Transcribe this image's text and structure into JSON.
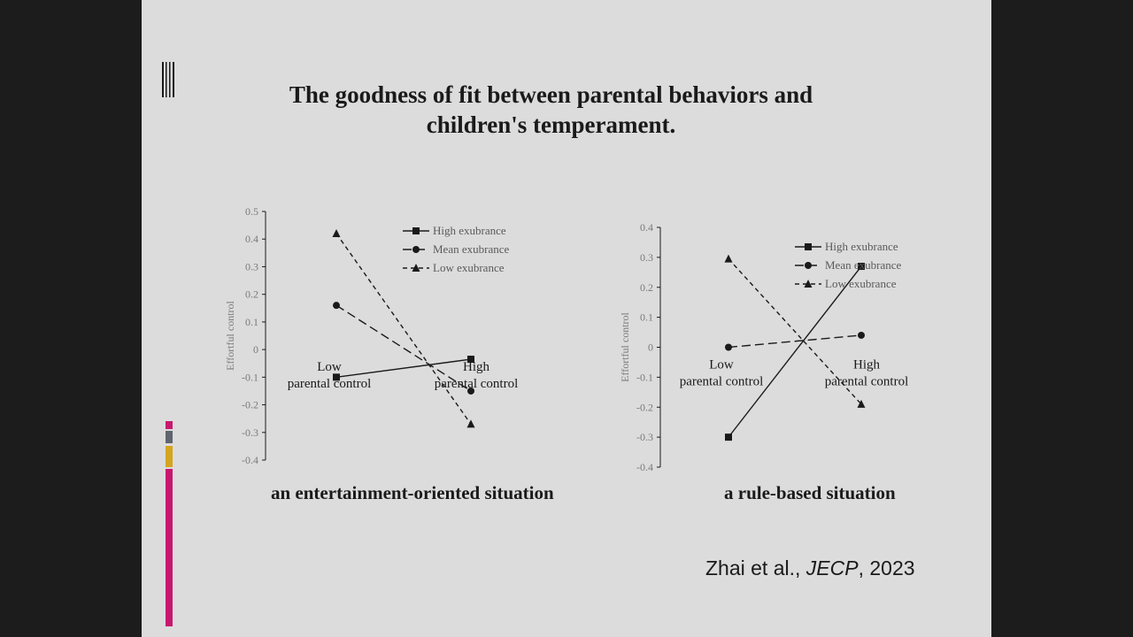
{
  "slide": {
    "title": "The goodness of fit between parental behaviors and children's temperament.",
    "citation": {
      "authors": "Zhai et al., ",
      "journal": "JECP",
      "year": ", 2023"
    },
    "accent_colors": {
      "magenta": "#c8186e",
      "gray": "#5f646e",
      "gold": "#d4a520"
    }
  },
  "chart_data": [
    {
      "type": "line",
      "caption": "an entertainment-oriented situation",
      "ylabel": "Effortful control",
      "xlabel": "",
      "ylim": [
        -0.4,
        0.5
      ],
      "yticks": [
        "0.5",
        "0.4",
        "0.3",
        "0.2",
        "0.1",
        "0",
        "-0.1",
        "-0.2",
        "-0.3",
        "-0.4"
      ],
      "categories": [
        "Low\nparental control",
        "High\nparental control"
      ],
      "category_labels": [
        [
          "Low",
          "parental control"
        ],
        [
          "High",
          "parental control"
        ]
      ],
      "legend_position": "top-right",
      "series": [
        {
          "name": "High exubrance",
          "marker": "square",
          "line": "solid",
          "values": [
            -0.1,
            -0.035
          ]
        },
        {
          "name": "Mean exubrance",
          "marker": "circle",
          "line": "long-dash",
          "values": [
            0.16,
            -0.15
          ]
        },
        {
          "name": "Low exubrance",
          "marker": "triangle",
          "line": "short-dash",
          "values": [
            0.42,
            -0.27
          ]
        }
      ]
    },
    {
      "type": "line",
      "caption": "a rule-based situation",
      "ylabel": "Effortful control",
      "xlabel": "",
      "ylim": [
        -0.4,
        0.4
      ],
      "yticks": [
        "0.4",
        "0.3",
        "0.2",
        "0.1",
        "0",
        "-0.1",
        "-0.2",
        "-0.3",
        "-0.4"
      ],
      "categories": [
        "Low\nparental control",
        "High\nparental control"
      ],
      "category_labels": [
        [
          "Low",
          "parental control"
        ],
        [
          "High",
          "parental control"
        ]
      ],
      "legend_position": "top-right",
      "series": [
        {
          "name": "High exubrance",
          "marker": "square",
          "line": "solid",
          "values": [
            -0.3,
            0.27
          ]
        },
        {
          "name": "Mean exubrance",
          "marker": "circle",
          "line": "long-dash",
          "values": [
            0.0,
            0.04
          ]
        },
        {
          "name": "Low exubrance",
          "marker": "triangle",
          "line": "short-dash",
          "values": [
            0.295,
            -0.19
          ]
        }
      ]
    }
  ]
}
